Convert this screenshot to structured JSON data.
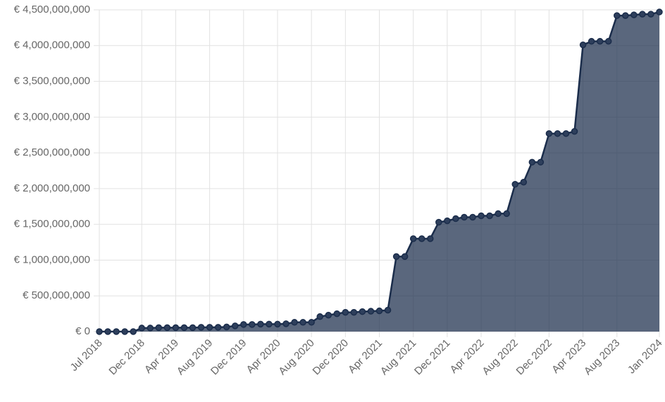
{
  "chart_data": {
    "type": "area",
    "categories": [
      "Jul 2018",
      null,
      null,
      null,
      null,
      "Dec 2018",
      null,
      null,
      null,
      "Apr 2019",
      null,
      null,
      null,
      "Aug 2019",
      null,
      null,
      null,
      "Dec 2019",
      null,
      null,
      null,
      "Apr 2020",
      null,
      null,
      null,
      "Aug 2020",
      null,
      null,
      null,
      "Dec 2020",
      null,
      null,
      null,
      "Apr 2021",
      null,
      null,
      null,
      "Aug 2021",
      null,
      null,
      null,
      "Dec 2021",
      null,
      null,
      null,
      "Apr 2022",
      null,
      null,
      null,
      "Aug 2022",
      null,
      null,
      null,
      "Dec 2022",
      null,
      null,
      null,
      "Apr 2023",
      null,
      null,
      null,
      "Aug 2023",
      null,
      null,
      null,
      null,
      "Jan 2024"
    ],
    "values": [
      0,
      0,
      0,
      0,
      0,
      50000000,
      50000000,
      55000000,
      55000000,
      55000000,
      55000000,
      55000000,
      60000000,
      60000000,
      60000000,
      65000000,
      80000000,
      100000000,
      100000000,
      105000000,
      105000000,
      105000000,
      110000000,
      130000000,
      130000000,
      130000000,
      210000000,
      230000000,
      250000000,
      270000000,
      270000000,
      280000000,
      285000000,
      290000000,
      300000000,
      1050000000,
      1050000000,
      1300000000,
      1300000000,
      1300000000,
      1530000000,
      1550000000,
      1580000000,
      1600000000,
      1600000000,
      1620000000,
      1620000000,
      1650000000,
      1650000000,
      2060000000,
      2090000000,
      2370000000,
      2370000000,
      2770000000,
      2770000000,
      2770000000,
      2800000000,
      4010000000,
      4060000000,
      4060000000,
      4060000000,
      4420000000,
      4420000000,
      4430000000,
      4440000000,
      4440000000,
      4470000000
    ],
    "color": "#1b2d4b",
    "fill": "rgba(27,45,75,0.72)",
    "ylim": [
      0,
      4500000000
    ],
    "yticks": [
      {
        "value": 0,
        "label": "€ 0"
      },
      {
        "value": 500000000,
        "label": "€ 500,000,000"
      },
      {
        "value": 1000000000,
        "label": "€ 1,000,000,000"
      },
      {
        "value": 1500000000,
        "label": "€ 1,500,000,000"
      },
      {
        "value": 2000000000,
        "label": "€ 2,000,000,000"
      },
      {
        "value": 2500000000,
        "label": "€ 2,500,000,000"
      },
      {
        "value": 3000000000,
        "label": "€ 3,000,000,000"
      },
      {
        "value": 3500000000,
        "label": "€ 3,500,000,000"
      },
      {
        "value": 4000000000,
        "label": "€ 4,000,000,000"
      },
      {
        "value": 4500000000,
        "label": "€ 4,500,000,000"
      }
    ],
    "grid": true
  }
}
